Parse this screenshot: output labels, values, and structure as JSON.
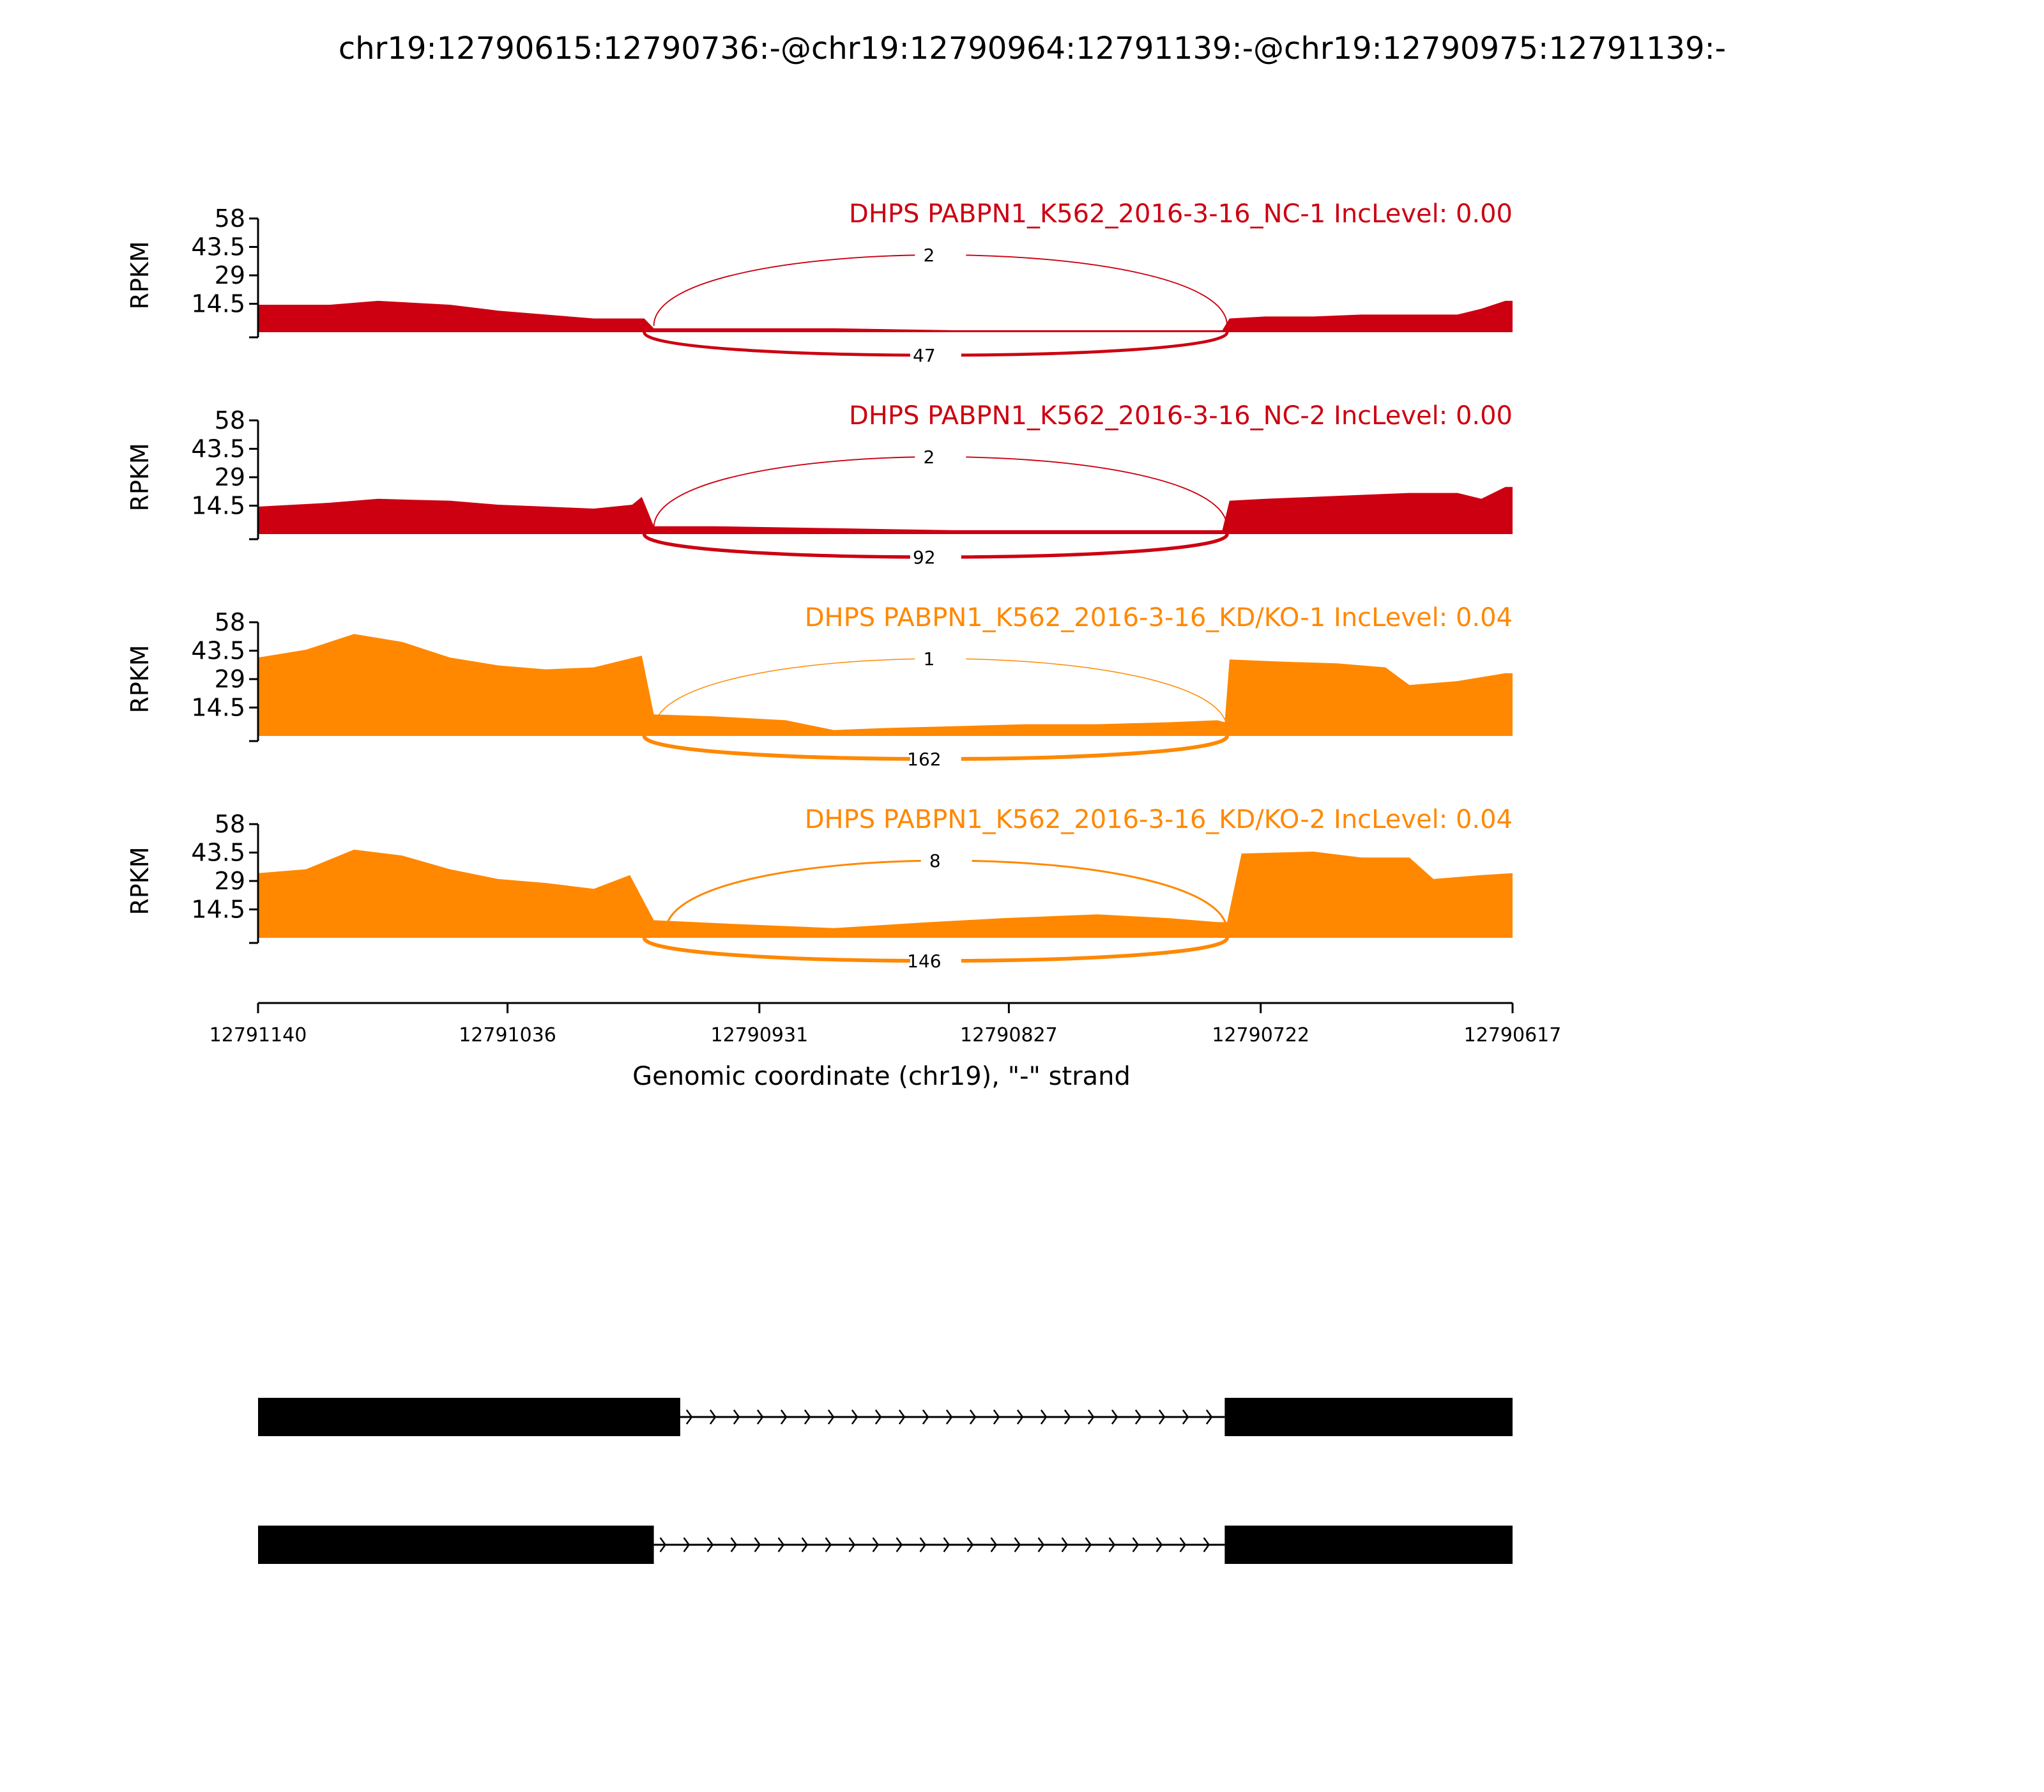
{
  "chart_data": {
    "type": "area",
    "title": "chr19:12790615:12790736:-@chr19:12790964:12791139:-@chr19:12790975:12791139:-",
    "xlabel": "Genomic coordinate (chr19), \"-\" strand",
    "ylabel": "RPKM",
    "xlim": [
      12791140,
      12790617
    ],
    "x_reversed": true,
    "ylim": [
      0,
      58
    ],
    "yticks": [
      "58",
      "43.5",
      "29",
      "14.5"
    ],
    "xticks": [
      "12791140",
      "12791036",
      "12790931",
      "12790827",
      "12790722",
      "12790617"
    ],
    "panels": [
      {
        "title": "DHPS PABPN1_K562_2016-3-16_NC-1 IncLevel: 0.00",
        "color": "#cc0011",
        "x": [
          12791140,
          12791110,
          12791090,
          12791060,
          12791040,
          12791020,
          12791000,
          12790979,
          12790975,
          12790950,
          12790900,
          12790850,
          12790800,
          12790760,
          12790738,
          12790735,
          12790720,
          12790700,
          12790680,
          12790660,
          12790640,
          12790630,
          12790620,
          12790617
        ],
        "y": [
          14,
          14,
          16,
          14,
          11,
          9,
          7,
          7,
          2,
          2,
          2,
          1,
          1,
          1,
          1,
          7,
          8,
          8,
          9,
          9,
          9,
          12,
          16,
          16
        ]
      },
      {
        "title": "DHPS PABPN1_K562_2016-3-16_NC-2 IncLevel: 0.00",
        "color": "#cc0011",
        "x": [
          12791140,
          12791110,
          12791090,
          12791060,
          12791040,
          12791020,
          12791000,
          12790984,
          12790980,
          12790975,
          12790950,
          12790900,
          12790850,
          12790800,
          12790760,
          12790738,
          12790735,
          12790720,
          12790700,
          12790680,
          12790660,
          12790640,
          12790630,
          12790620,
          12790617
        ],
        "y": [
          14,
          16,
          18,
          17,
          15,
          14,
          13,
          15,
          19,
          4,
          4,
          3,
          2,
          2,
          2,
          2,
          17,
          18,
          19,
          20,
          21,
          21,
          18,
          24,
          24
        ]
      },
      {
        "title": "DHPS PABPN1_K562_2016-3-16_KD/KO-1 IncLevel: 0.04",
        "color": "#ff8800",
        "x": [
          12791140,
          12791120,
          12791100,
          12791080,
          12791060,
          12791040,
          12791020,
          12791000,
          12790980,
          12790975,
          12790950,
          12790920,
          12790900,
          12790880,
          12790850,
          12790820,
          12790790,
          12790760,
          12790740,
          12790737,
          12790735,
          12790715,
          12790690,
          12790670,
          12790660,
          12790640,
          12790620,
          12790617
        ],
        "y": [
          40,
          44,
          52,
          48,
          40,
          36,
          34,
          35,
          41,
          11,
          10,
          8,
          3,
          4,
          5,
          6,
          6,
          7,
          8,
          7,
          39,
          38,
          37,
          35,
          26,
          28,
          32,
          32
        ]
      },
      {
        "title": "DHPS PABPN1_K562_2016-3-16_KD/KO-2 IncLevel: 0.04",
        "color": "#ff8800",
        "x": [
          12791140,
          12791120,
          12791100,
          12791080,
          12791060,
          12791040,
          12791020,
          12791000,
          12790985,
          12790975,
          12790940,
          12790900,
          12790860,
          12790830,
          12790790,
          12790760,
          12790740,
          12790736,
          12790730,
          12790700,
          12790680,
          12790660,
          12790650,
          12790630,
          12790617
        ],
        "y": [
          33,
          35,
          45,
          42,
          35,
          30,
          28,
          25,
          32,
          9,
          7,
          5,
          8,
          10,
          12,
          10,
          8,
          8,
          43,
          44,
          41,
          41,
          30,
          32,
          33
        ]
      }
    ],
    "junctions": [
      {
        "panel": 0,
        "start": 12790975,
        "end": 12790736,
        "count": "2",
        "side": "above"
      },
      {
        "panel": 0,
        "start": 12790979,
        "end": 12790736,
        "count": "47",
        "side": "below"
      },
      {
        "panel": 1,
        "start": 12790975,
        "end": 12790736,
        "count": "2",
        "side": "above"
      },
      {
        "panel": 1,
        "start": 12790979,
        "end": 12790736,
        "count": "92",
        "side": "below"
      },
      {
        "panel": 2,
        "start": 12790975,
        "end": 12790736,
        "count": "1",
        "side": "above"
      },
      {
        "panel": 2,
        "start": 12790979,
        "end": 12790736,
        "count": "162",
        "side": "below"
      },
      {
        "panel": 3,
        "start": 12790970,
        "end": 12790736,
        "count": "8",
        "side": "above"
      },
      {
        "panel": 3,
        "start": 12790979,
        "end": 12790736,
        "count": "146",
        "side": "below"
      }
    ],
    "isoforms": [
      {
        "exons": [
          [
            12791140,
            12790964
          ],
          [
            12790737,
            12790617
          ]
        ]
      },
      {
        "exons": [
          [
            12791140,
            12790975
          ],
          [
            12790737,
            12790617
          ]
        ]
      }
    ]
  }
}
